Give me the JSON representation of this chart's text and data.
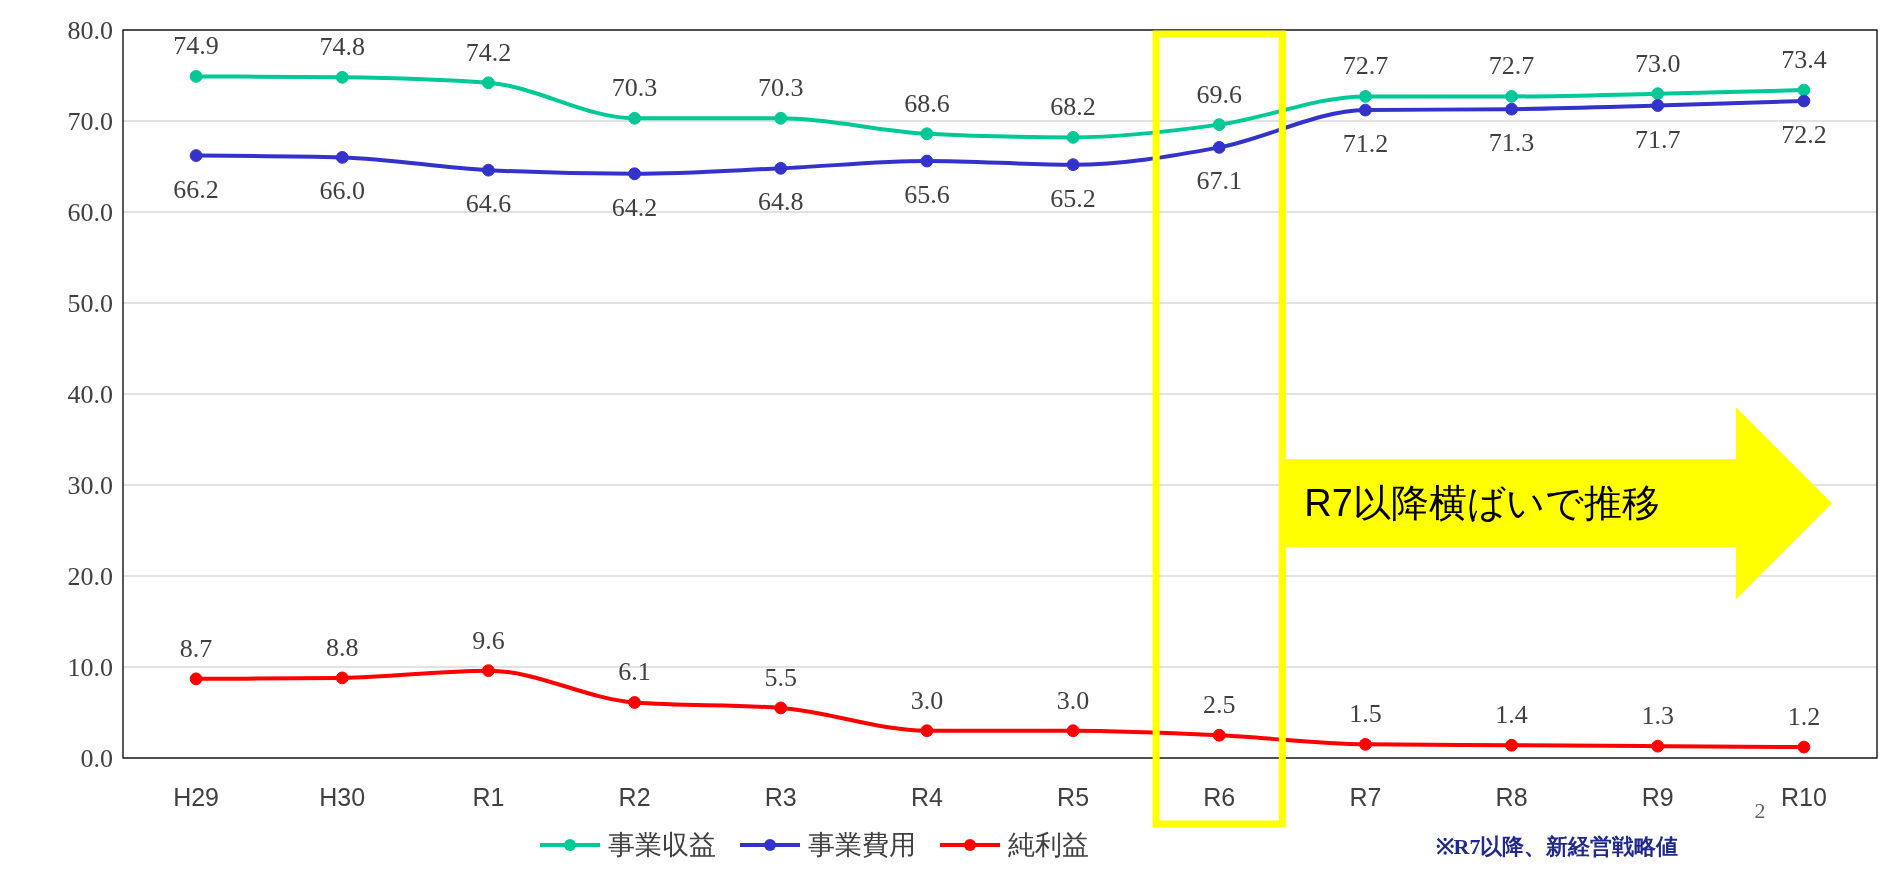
{
  "chart_data": {
    "type": "line",
    "categories": [
      "H29",
      "H30",
      "R1",
      "R2",
      "R3",
      "R4",
      "R5",
      "R6",
      "R7",
      "R8",
      "R9",
      "R10"
    ],
    "series": [
      {
        "name": "事業収益",
        "color": "#00c896",
        "values": [
          74.9,
          74.8,
          74.2,
          70.3,
          70.3,
          68.6,
          68.2,
          69.6,
          72.7,
          72.7,
          73.0,
          73.4
        ],
        "value_labels": [
          "74.9",
          "74.8",
          "74.2",
          "70.3",
          "70.3",
          "68.6",
          "68.2",
          "69.6",
          "72.7",
          "72.7",
          "73.0",
          "73.4"
        ]
      },
      {
        "name": "事業費用",
        "color": "#3333cc",
        "values": [
          66.2,
          66.0,
          64.6,
          64.2,
          64.8,
          65.6,
          65.2,
          67.1,
          71.2,
          71.3,
          71.7,
          72.2
        ],
        "value_labels": [
          "66.2",
          "66.0",
          "64.6",
          "64.2",
          "64.8",
          "65.6",
          "65.2",
          "67.1",
          "71.2",
          "71.3",
          "71.7",
          "72.2"
        ]
      },
      {
        "name": "純利益",
        "color": "#ff0000",
        "values": [
          8.7,
          8.8,
          9.6,
          6.1,
          5.5,
          3.0,
          3.0,
          2.5,
          1.5,
          1.4,
          1.3,
          1.2
        ],
        "value_labels": [
          "8.7",
          "8.8",
          "9.6",
          "6.1",
          "5.5",
          "3.0",
          "3.0",
          "2.5",
          "1.5",
          "1.4",
          "1.3",
          "1.2"
        ]
      }
    ],
    "ylim": [
      0,
      80
    ],
    "yticks": [
      {
        "value": 0,
        "label": "0.0"
      },
      {
        "value": 10,
        "label": "10.0"
      },
      {
        "value": 20,
        "label": "20.0"
      },
      {
        "value": 30,
        "label": "30.0"
      },
      {
        "value": 40,
        "label": "40.0"
      },
      {
        "value": 50,
        "label": "50.0"
      },
      {
        "value": 60,
        "label": "60.0"
      },
      {
        "value": 70,
        "label": "70.0"
      },
      {
        "value": 80,
        "label": "80.0"
      }
    ],
    "grid": "y",
    "legend": "bottom",
    "marker": "circle",
    "annotations": [
      "R7以降横ばいで推移",
      "※R7以降、新経営戦略値",
      "2"
    ]
  }
}
